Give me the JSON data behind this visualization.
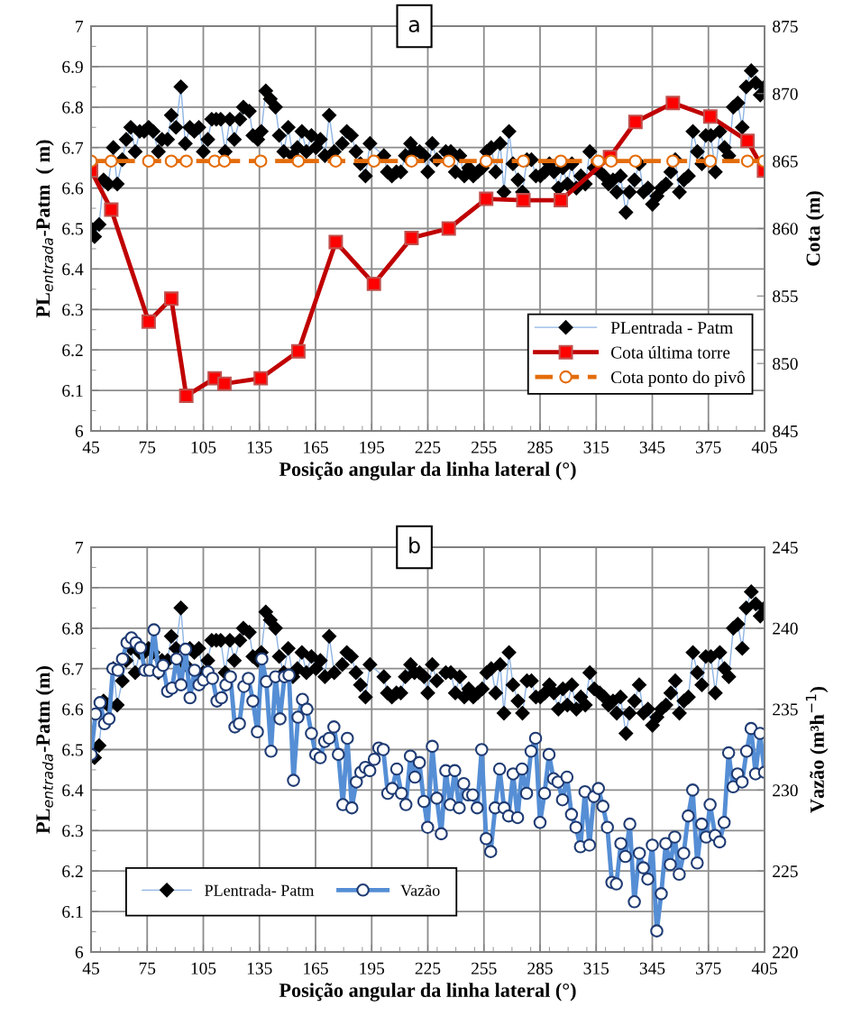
{
  "chart_data": [
    {
      "type": "line",
      "annotations": [
        "a"
      ],
      "xlabel": "Posição angular da linha lateral (°)",
      "ylabel": "PL$_{entrada}$-Patm  ( m)",
      "y2label": "Cota (m)",
      "xlim": [
        45,
        405
      ],
      "xticks": [
        45,
        75,
        105,
        135,
        165,
        195,
        225,
        255,
        285,
        315,
        345,
        375,
        405
      ],
      "ylim": [
        6,
        7
      ],
      "yticks": [
        6,
        6.1,
        6.2,
        6.3,
        6.4,
        6.5,
        6.6,
        6.7,
        6.8,
        6.9,
        7
      ],
      "y2lim": [
        845,
        875
      ],
      "y2ticks": [
        845,
        850,
        855,
        860,
        865,
        870,
        875
      ],
      "grid": true,
      "legend": "bottom right",
      "series": [
        {
          "name": "PLentrada - Patm",
          "color": "#8eb4e3",
          "marker": "diamond",
          "line_style": "solid",
          "x": [
            45,
            46.9,
            49.3,
            51.7,
            54.1,
            56.9,
            59,
            61.7,
            63.8,
            66.2,
            68.6,
            71,
            73.4,
            75.8,
            78.2,
            81,
            82.9,
            85.9,
            87.9,
            90.4,
            93,
            95.4,
            97.8,
            100.2,
            102.6,
            105,
            107.4,
            109.5,
            111.9,
            114.3,
            116.7,
            119.2,
            121.6,
            124.5,
            126.4,
            129.6,
            131.5,
            134.1,
            136,
            138.4,
            140.8,
            143.6,
            145.6,
            148,
            150.4,
            152.9,
            155.3,
            157.7,
            160.1,
            162.8,
            165.2,
            167.6,
            170,
            172.3,
            175,
            179.3,
            181.7,
            184.2,
            186.6,
            189,
            191.7,
            194.1,
            201.5,
            203.4,
            205.8,
            208.2,
            210.6,
            213,
            215.8,
            217.9,
            220.6,
            223,
            225,
            227.4,
            229.8,
            234.6,
            237.3,
            239.7,
            242.1,
            244.5,
            246.9,
            249.3,
            251.7,
            254.1,
            256.5,
            258.9,
            261.3,
            263.7,
            265.7,
            268.4,
            270.5,
            273.2,
            275.6,
            278,
            280.4,
            282.8,
            285.2,
            287.6,
            290,
            292.4,
            294.8,
            297.2,
            299.6,
            302,
            304.4,
            306.8,
            309.2,
            311.6,
            314,
            316.9,
            319.2,
            321.6,
            324,
            326,
            328,
            330.9,
            332.8,
            335.5,
            338,
            340.3,
            342.7,
            345.1,
            347.5,
            349.9,
            352.3,
            354.9,
            357.3,
            359.5,
            361.9,
            364.3,
            366.7,
            369.1,
            371.5,
            373.6,
            376.3,
            378.7,
            381.1,
            383.6,
            385.9,
            388.3,
            390.7,
            393.1,
            395.2,
            397.9,
            400.3,
            402.7,
            405
          ],
          "values": [
            6.5,
            6.48,
            6.51,
            6.62,
            6.61,
            6.7,
            6.61,
            6.67,
            6.72,
            6.75,
            6.69,
            6.74,
            6.74,
            6.75,
            6.74,
            6.69,
            6.72,
            6.72,
            6.78,
            6.75,
            6.85,
            6.71,
            6.75,
            6.74,
            6.75,
            6.69,
            6.72,
            6.77,
            6.77,
            6.77,
            6.69,
            6.77,
            6.72,
            6.77,
            6.8,
            6.79,
            6.73,
            6.72,
            6.74,
            6.84,
            6.82,
            6.8,
            6.73,
            6.69,
            6.75,
            6.68,
            6.7,
            6.74,
            6.69,
            6.73,
            6.7,
            6.72,
            6.68,
            6.78,
            6.69,
            6.71,
            6.74,
            6.73,
            6.69,
            6.66,
            6.63,
            6.71,
            6.68,
            6.64,
            6.63,
            6.64,
            6.64,
            6.68,
            6.71,
            6.69,
            6.69,
            6.68,
            6.64,
            6.71,
            6.67,
            6.69,
            6.69,
            6.64,
            6.68,
            6.63,
            6.65,
            6.63,
            6.64,
            6.65,
            6.69,
            6.7,
            6.64,
            6.71,
            6.59,
            6.74,
            6.66,
            6.62,
            6.59,
            6.67,
            6.67,
            6.63,
            6.63,
            6.64,
            6.66,
            6.64,
            6.6,
            6.65,
            6.61,
            6.66,
            6.6,
            6.63,
            6.61,
            6.69,
            6.65,
            6.64,
            6.63,
            6.61,
            6.62,
            6.59,
            6.63,
            6.54,
            6.59,
            6.62,
            6.66,
            6.59,
            6.6,
            6.56,
            6.58,
            6.6,
            6.61,
            6.64,
            6.67,
            6.59,
            6.62,
            6.63,
            6.74,
            6.69,
            6.66,
            6.73,
            6.73,
            6.64,
            6.74,
            6.7,
            6.68,
            6.8,
            6.81,
            6.75,
            6.85,
            6.89,
            6.86,
            6.83,
            6.85
          ]
        },
        {
          "name": "Cota última torre",
          "color": "#c00000",
          "marker": "square",
          "line_style": "solid",
          "axis": "y2",
          "x": [
            45,
            55.8,
            75.8,
            87.9,
            95.9,
            111.1,
            116.3,
            135.7,
            155.8,
            175.8,
            196.2,
            216.3,
            236.2,
            256.2,
            276.1,
            296.1,
            322.4,
            336,
            356,
            376,
            395.9,
            404.7
          ],
          "values": [
            864.3,
            861.4,
            853.1,
            854.8,
            847.6,
            848.9,
            848.5,
            848.9,
            850.9,
            859.0,
            855.9,
            859.3,
            860.0,
            862.2,
            862.1,
            862.1,
            865.3,
            867.9,
            869.3,
            868.3,
            866.5,
            864.3
          ]
        },
        {
          "name": "Cota ponto do pivô",
          "color": "#e46c0a",
          "marker": "circle",
          "line_style": "dashed",
          "axis": "y2",
          "x": [
            45,
            55.8,
            75.8,
            87.9,
            95.9,
            111.1,
            116.3,
            135.7,
            155.8,
            175.8,
            196.2,
            216.3,
            236.2,
            256.2,
            276.1,
            296.1,
            316.1,
            323,
            336,
            356,
            376,
            395.9,
            404.7
          ],
          "values": [
            865,
            865,
            865,
            865,
            865,
            865,
            865,
            865,
            865,
            865,
            865,
            865,
            865,
            865,
            865,
            865,
            865,
            865,
            865,
            865,
            865,
            865,
            865
          ]
        }
      ]
    },
    {
      "type": "line",
      "annotations": [
        "b"
      ],
      "xlabel": "Posição angular da linha lateral (°)",
      "ylabel": "PL$_{entrada}$-Patm (m)",
      "y2label": "Vazão (m³h$^{−1}$)",
      "xlim": [
        45,
        405
      ],
      "xticks": [
        45,
        75,
        105,
        135,
        165,
        195,
        225,
        255,
        285,
        315,
        345,
        375,
        405
      ],
      "ylim": [
        6,
        7
      ],
      "yticks": [
        6,
        6.1,
        6.2,
        6.3,
        6.4,
        6.5,
        6.6,
        6.7,
        6.8,
        6.9,
        7
      ],
      "y2lim": [
        220,
        245
      ],
      "y2ticks": [
        220,
        225,
        230,
        235,
        240,
        245
      ],
      "grid": true,
      "legend": "bottom left",
      "series": [
        {
          "name": "PLentrada- Patm",
          "color": "#8eb4e3",
          "marker": "diamond",
          "line_style": "solid",
          "x": [
            45,
            46.9,
            49.3,
            51.7,
            54.1,
            56.9,
            59,
            61.7,
            63.8,
            66.2,
            68.6,
            71,
            73.4,
            75.8,
            78.2,
            81,
            82.9,
            85.9,
            87.9,
            90.4,
            93,
            95.4,
            97.8,
            100.2,
            102.6,
            105,
            107.4,
            109.5,
            111.9,
            114.3,
            116.7,
            119.2,
            121.6,
            124.5,
            126.4,
            129.6,
            131.5,
            134.1,
            136,
            138.4,
            140.8,
            143.6,
            145.6,
            148,
            150.4,
            152.9,
            155.3,
            157.7,
            160.1,
            162.8,
            165.2,
            167.6,
            170,
            172.3,
            175,
            179.3,
            181.7,
            184.2,
            186.6,
            189,
            191.7,
            194.1,
            201.5,
            203.4,
            205.8,
            208.2,
            210.6,
            213,
            215.8,
            217.9,
            220.6,
            223,
            225,
            227.4,
            229.8,
            234.6,
            237.3,
            239.7,
            242.1,
            244.5,
            246.9,
            249.3,
            251.7,
            254.1,
            256.5,
            258.9,
            261.3,
            263.7,
            265.7,
            268.4,
            270.5,
            273.2,
            275.6,
            278,
            280.4,
            282.8,
            285.2,
            287.6,
            290,
            292.4,
            294.8,
            297.2,
            299.6,
            302,
            304.4,
            306.8,
            309.2,
            311.6,
            314,
            316.9,
            319.2,
            321.6,
            324,
            326,
            328,
            330.9,
            332.8,
            335.5,
            338,
            340.3,
            342.7,
            345.1,
            347.5,
            349.9,
            352.3,
            354.9,
            357.3,
            359.5,
            361.9,
            364.3,
            366.7,
            369.1,
            371.5,
            373.6,
            376.3,
            378.7,
            381.1,
            383.6,
            385.9,
            388.3,
            390.7,
            393.1,
            395.2,
            397.9,
            400.3,
            402.7,
            405
          ],
          "values": [
            6.5,
            6.48,
            6.51,
            6.62,
            6.61,
            6.7,
            6.61,
            6.67,
            6.72,
            6.75,
            6.69,
            6.74,
            6.74,
            6.75,
            6.74,
            6.69,
            6.72,
            6.72,
            6.78,
            6.75,
            6.85,
            6.71,
            6.75,
            6.74,
            6.75,
            6.69,
            6.72,
            6.77,
            6.77,
            6.77,
            6.69,
            6.77,
            6.72,
            6.77,
            6.8,
            6.79,
            6.73,
            6.72,
            6.74,
            6.84,
            6.82,
            6.8,
            6.73,
            6.69,
            6.75,
            6.68,
            6.7,
            6.74,
            6.69,
            6.73,
            6.7,
            6.72,
            6.68,
            6.78,
            6.69,
            6.71,
            6.74,
            6.73,
            6.69,
            6.66,
            6.63,
            6.71,
            6.68,
            6.64,
            6.63,
            6.64,
            6.64,
            6.68,
            6.71,
            6.69,
            6.69,
            6.68,
            6.64,
            6.71,
            6.67,
            6.69,
            6.69,
            6.64,
            6.68,
            6.63,
            6.65,
            6.63,
            6.64,
            6.65,
            6.69,
            6.7,
            6.64,
            6.71,
            6.59,
            6.74,
            6.66,
            6.62,
            6.59,
            6.67,
            6.67,
            6.63,
            6.63,
            6.64,
            6.66,
            6.64,
            6.6,
            6.65,
            6.61,
            6.66,
            6.6,
            6.63,
            6.61,
            6.69,
            6.65,
            6.64,
            6.63,
            6.61,
            6.62,
            6.59,
            6.63,
            6.54,
            6.59,
            6.62,
            6.66,
            6.59,
            6.6,
            6.56,
            6.58,
            6.6,
            6.61,
            6.64,
            6.67,
            6.59,
            6.62,
            6.63,
            6.74,
            6.69,
            6.66,
            6.73,
            6.73,
            6.64,
            6.74,
            6.7,
            6.68,
            6.8,
            6.81,
            6.75,
            6.85,
            6.89,
            6.86,
            6.83,
            6.85
          ]
        },
        {
          "name": "Vazão",
          "color": "#558ed5",
          "marker": "circle",
          "line_style": "solid",
          "axis": "y2",
          "x": [
            45,
            47.4,
            49.8,
            52.2,
            54.6,
            56.7,
            59.4,
            61.8,
            64.2,
            66.6,
            69,
            71.4,
            73.8,
            76.3,
            78.6,
            81.1,
            83.5,
            85.9,
            88.3,
            90.7,
            93.1,
            95.5,
            97.9,
            100.3,
            102.7,
            105.1,
            107.5,
            109.9,
            112.3,
            114.7,
            117.1,
            119.5,
            121.9,
            124.3,
            126.7,
            129.1,
            131.5,
            133.9,
            136.3,
            138.7,
            141.2,
            143.6,
            146,
            148.4,
            150.8,
            153.2,
            155.6,
            158,
            160.4,
            162.8,
            165.1,
            167.5,
            169.9,
            172.3,
            174.8,
            177.2,
            179.6,
            182,
            184.4,
            186.8,
            189.2,
            191.6,
            194,
            196.4,
            198.8,
            201.2,
            203.6,
            206,
            208.4,
            210.9,
            213.3,
            215.7,
            218.1,
            220.5,
            222.9,
            224.9,
            227.4,
            229.8,
            232.2,
            234.6,
            237,
            239.4,
            241.8,
            244.2,
            246.6,
            249,
            251.4,
            253.8,
            256.2,
            258.6,
            261,
            263.4,
            265.8,
            268.2,
            270.6,
            273,
            275.4,
            277.8,
            280.2,
            282.6,
            285,
            287.4,
            289.8,
            292.2,
            294.6,
            297,
            299.4,
            301.8,
            304.2,
            306.6,
            309,
            311.4,
            313.8,
            316.2,
            318.6,
            321,
            323.4,
            325.8,
            328.2,
            330.6,
            333,
            335.4,
            338.1,
            340.2,
            342.6,
            345,
            347.4,
            349.8,
            352.2,
            354.6,
            357,
            359.4,
            361.8,
            364.2,
            366.6,
            369,
            371.4,
            373.8,
            375.9,
            378.6,
            381,
            383.4,
            385.8,
            388.2,
            390.6,
            393,
            395.4,
            397.8,
            400.2,
            402.6,
            405
          ],
          "values": [
            232.2,
            234.7,
            235.4,
            234.1,
            234.4,
            237.5,
            237.4,
            238.1,
            239.1,
            239.4,
            239.1,
            238.8,
            237.4,
            237.4,
            239.9,
            237.3,
            237.7,
            236.1,
            236.3,
            238.1,
            236.5,
            238.7,
            235.7,
            237.4,
            236.5,
            236.8,
            237.3,
            236.9,
            235.5,
            235.7,
            236.5,
            237.0,
            233.9,
            234.1,
            236.4,
            236.9,
            235.5,
            233.6,
            238.1,
            236.7,
            232.4,
            237.0,
            234.4,
            237.0,
            237.1,
            230.6,
            234.5,
            235.6,
            235.0,
            233.5,
            232.2,
            232.0,
            233.0,
            233.2,
            233.9,
            232.2,
            229.1,
            233.2,
            228.9,
            230.5,
            231.1,
            231.4,
            231.2,
            231.9,
            232.6,
            232.5,
            229.8,
            230.1,
            231.3,
            229.8,
            229.1,
            232.1,
            230.8,
            231.7,
            229.3,
            227.7,
            232.7,
            229.5,
            227.3,
            231.2,
            229.1,
            231.2,
            228.9,
            230.4,
            229.7,
            229.7,
            228.9,
            232.5,
            227.0,
            226.2,
            228.9,
            231.3,
            228.9,
            228.4,
            231.0,
            228.3,
            231.3,
            229.8,
            232.4,
            233.2,
            228.0,
            229.8,
            232.2,
            230.7,
            230.5,
            229.4,
            230.8,
            228.5,
            227.7,
            226.5,
            229.9,
            226.6,
            229.6,
            230.1,
            229.0,
            227.7,
            224.3,
            224.2,
            226.7,
            225.9,
            227.9,
            223.1,
            226.1,
            225.2,
            224.5,
            226.6,
            221.3,
            223.6,
            226.7,
            225.4,
            227.1,
            224.8,
            226.1,
            228.4,
            230.0,
            225.5,
            227.9,
            227.1,
            229.1,
            227.2,
            226.8,
            228.0,
            232.3,
            230.2,
            231.0,
            230.5,
            232.4,
            233.8,
            231.0,
            233.5,
            231.1
          ]
        }
      ]
    }
  ]
}
